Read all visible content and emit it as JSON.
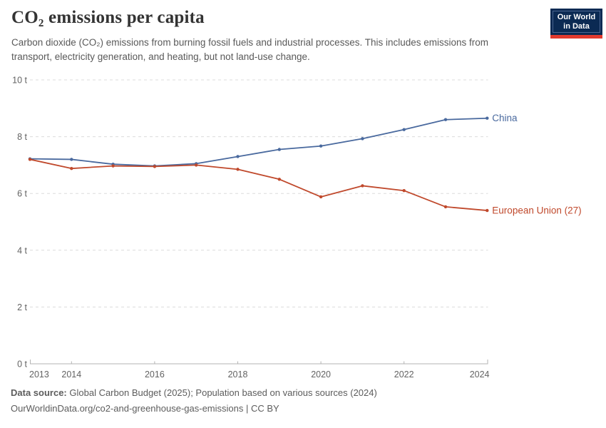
{
  "header": {
    "title": "CO₂ emissions per capita",
    "subtitle": "Carbon dioxide (CO₂) emissions from burning fossil fuels and industrial processes. This includes emissions from transport, electricity generation, and heating, but not land-use change.",
    "logo_line1": "Our World",
    "logo_line2": "in Data",
    "logo_colors": {
      "background": "#0B2A53",
      "inner_border": "#4a6590",
      "bottom_bar": "#E23A2E",
      "text": "#ffffff"
    }
  },
  "footer": {
    "data_source_label": "Data source:",
    "data_source_text": "Global Carbon Budget (2025); Population based on various sources (2024)",
    "attribution": "OurWorldinData.org/co2-and-greenhouse-gas-emissions | CC BY"
  },
  "chart_data": {
    "type": "line",
    "title": "CO₂ emissions per capita",
    "unit": "t",
    "grid": "horizontal-dashed",
    "legend_position": "end-of-line-labels",
    "ylim": [
      0,
      10
    ],
    "xlabel": "",
    "ylabel": "",
    "x": [
      2013,
      2014,
      2015,
      2016,
      2017,
      2018,
      2019,
      2020,
      2021,
      2022,
      2023,
      2024
    ],
    "x_tick_labels": [
      "2013",
      "2014",
      "2016",
      "2018",
      "2020",
      "2022",
      "2024"
    ],
    "y_ticks": [
      {
        "value": 0,
        "label": "0 t"
      },
      {
        "value": 2,
        "label": "2 t"
      },
      {
        "value": 4,
        "label": "4 t"
      },
      {
        "value": 6,
        "label": "6 t"
      },
      {
        "value": 8,
        "label": "8 t"
      },
      {
        "value": 10,
        "label": "10 t"
      }
    ],
    "series": [
      {
        "name": "China",
        "color": "#49699E",
        "values": [
          7.22,
          7.2,
          7.03,
          6.97,
          7.05,
          7.3,
          7.55,
          7.67,
          7.93,
          8.25,
          8.6,
          8.65
        ]
      },
      {
        "name": "European Union (27)",
        "color": "#C0492C",
        "values": [
          7.2,
          6.88,
          6.97,
          6.95,
          7.0,
          6.85,
          6.5,
          5.88,
          6.27,
          6.1,
          5.53,
          5.4
        ]
      }
    ]
  }
}
